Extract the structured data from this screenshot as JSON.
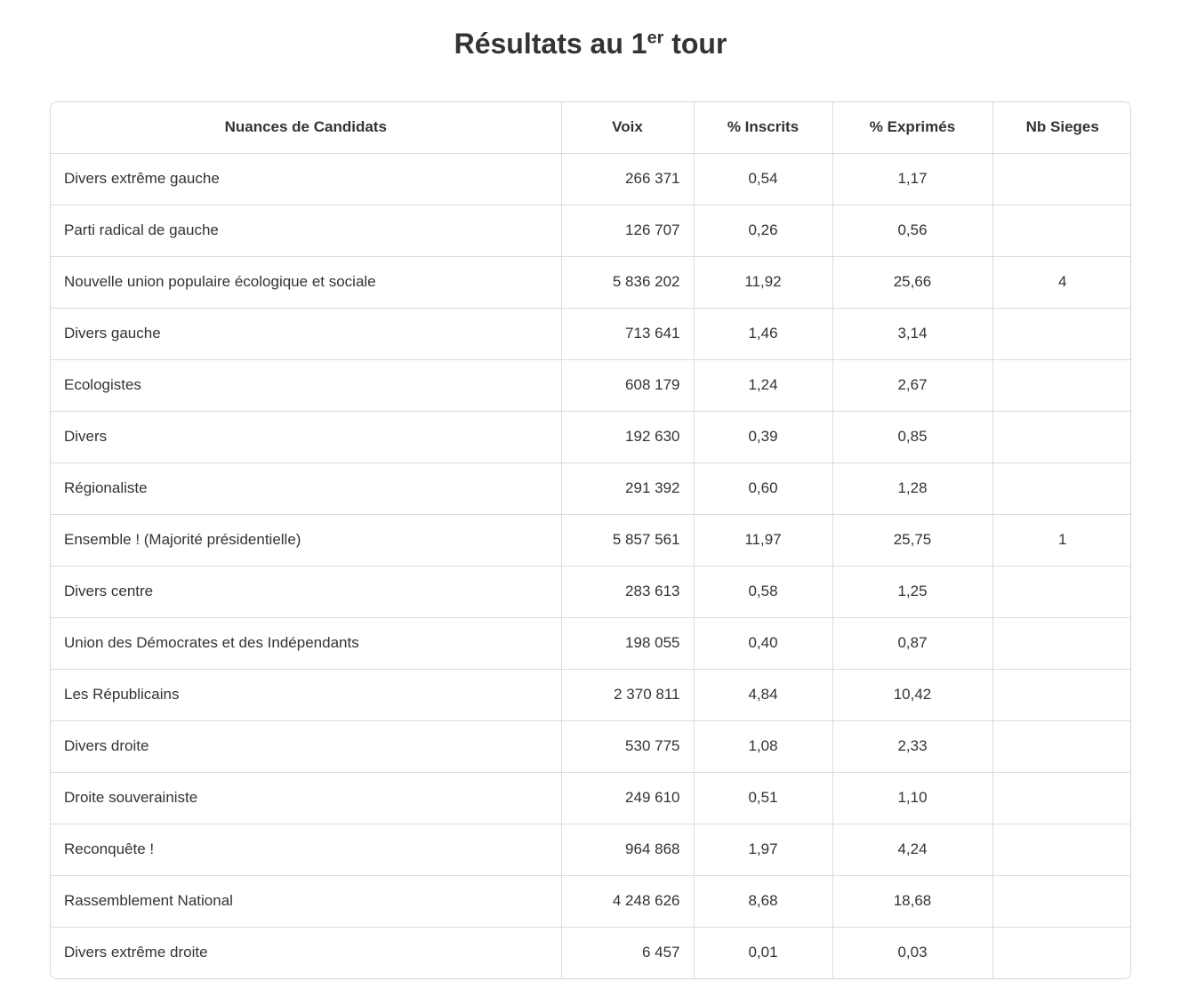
{
  "title": {
    "before": "Résultats au 1",
    "sup": "er",
    "after": " tour"
  },
  "chart_data": {
    "type": "table",
    "title": "Résultats au 1er tour",
    "columns": [
      "Nuances de Candidats",
      "Voix",
      "% Inscrits",
      "% Exprimés",
      "Nb Sieges"
    ],
    "rows": [
      [
        "Divers extrême gauche",
        "266 371",
        "0,54",
        "1,17",
        ""
      ],
      [
        "Parti radical de gauche",
        "126 707",
        "0,26",
        "0,56",
        ""
      ],
      [
        "Nouvelle union populaire écologique et sociale",
        "5 836 202",
        "11,92",
        "25,66",
        "4"
      ],
      [
        "Divers gauche",
        "713 641",
        "1,46",
        "3,14",
        ""
      ],
      [
        "Ecologistes",
        "608 179",
        "1,24",
        "2,67",
        ""
      ],
      [
        "Divers",
        "192 630",
        "0,39",
        "0,85",
        ""
      ],
      [
        "Régionaliste",
        "291 392",
        "0,60",
        "1,28",
        ""
      ],
      [
        "Ensemble ! (Majorité présidentielle)",
        "5 857 561",
        "11,97",
        "25,75",
        "1"
      ],
      [
        "Divers centre",
        "283 613",
        "0,58",
        "1,25",
        ""
      ],
      [
        "Union des Démocrates et des Indépendants",
        "198 055",
        "0,40",
        "0,87",
        ""
      ],
      [
        "Les Républicains",
        "2 370 811",
        "4,84",
        "10,42",
        ""
      ],
      [
        "Divers droite",
        "530 775",
        "1,08",
        "2,33",
        ""
      ],
      [
        "Droite souverainiste",
        "249 610",
        "0,51",
        "1,10",
        ""
      ],
      [
        "Reconquête !",
        "964 868",
        "1,97",
        "4,24",
        ""
      ],
      [
        "Rassemblement National",
        "4 248 626",
        "8,68",
        "18,68",
        ""
      ],
      [
        "Divers extrême droite",
        "6 457",
        "0,01",
        "0,03",
        ""
      ]
    ]
  },
  "colors": {
    "text": "#333333",
    "border": "#dcdcdc",
    "outer_border": "#d6d6d6",
    "background": "#ffffff"
  }
}
